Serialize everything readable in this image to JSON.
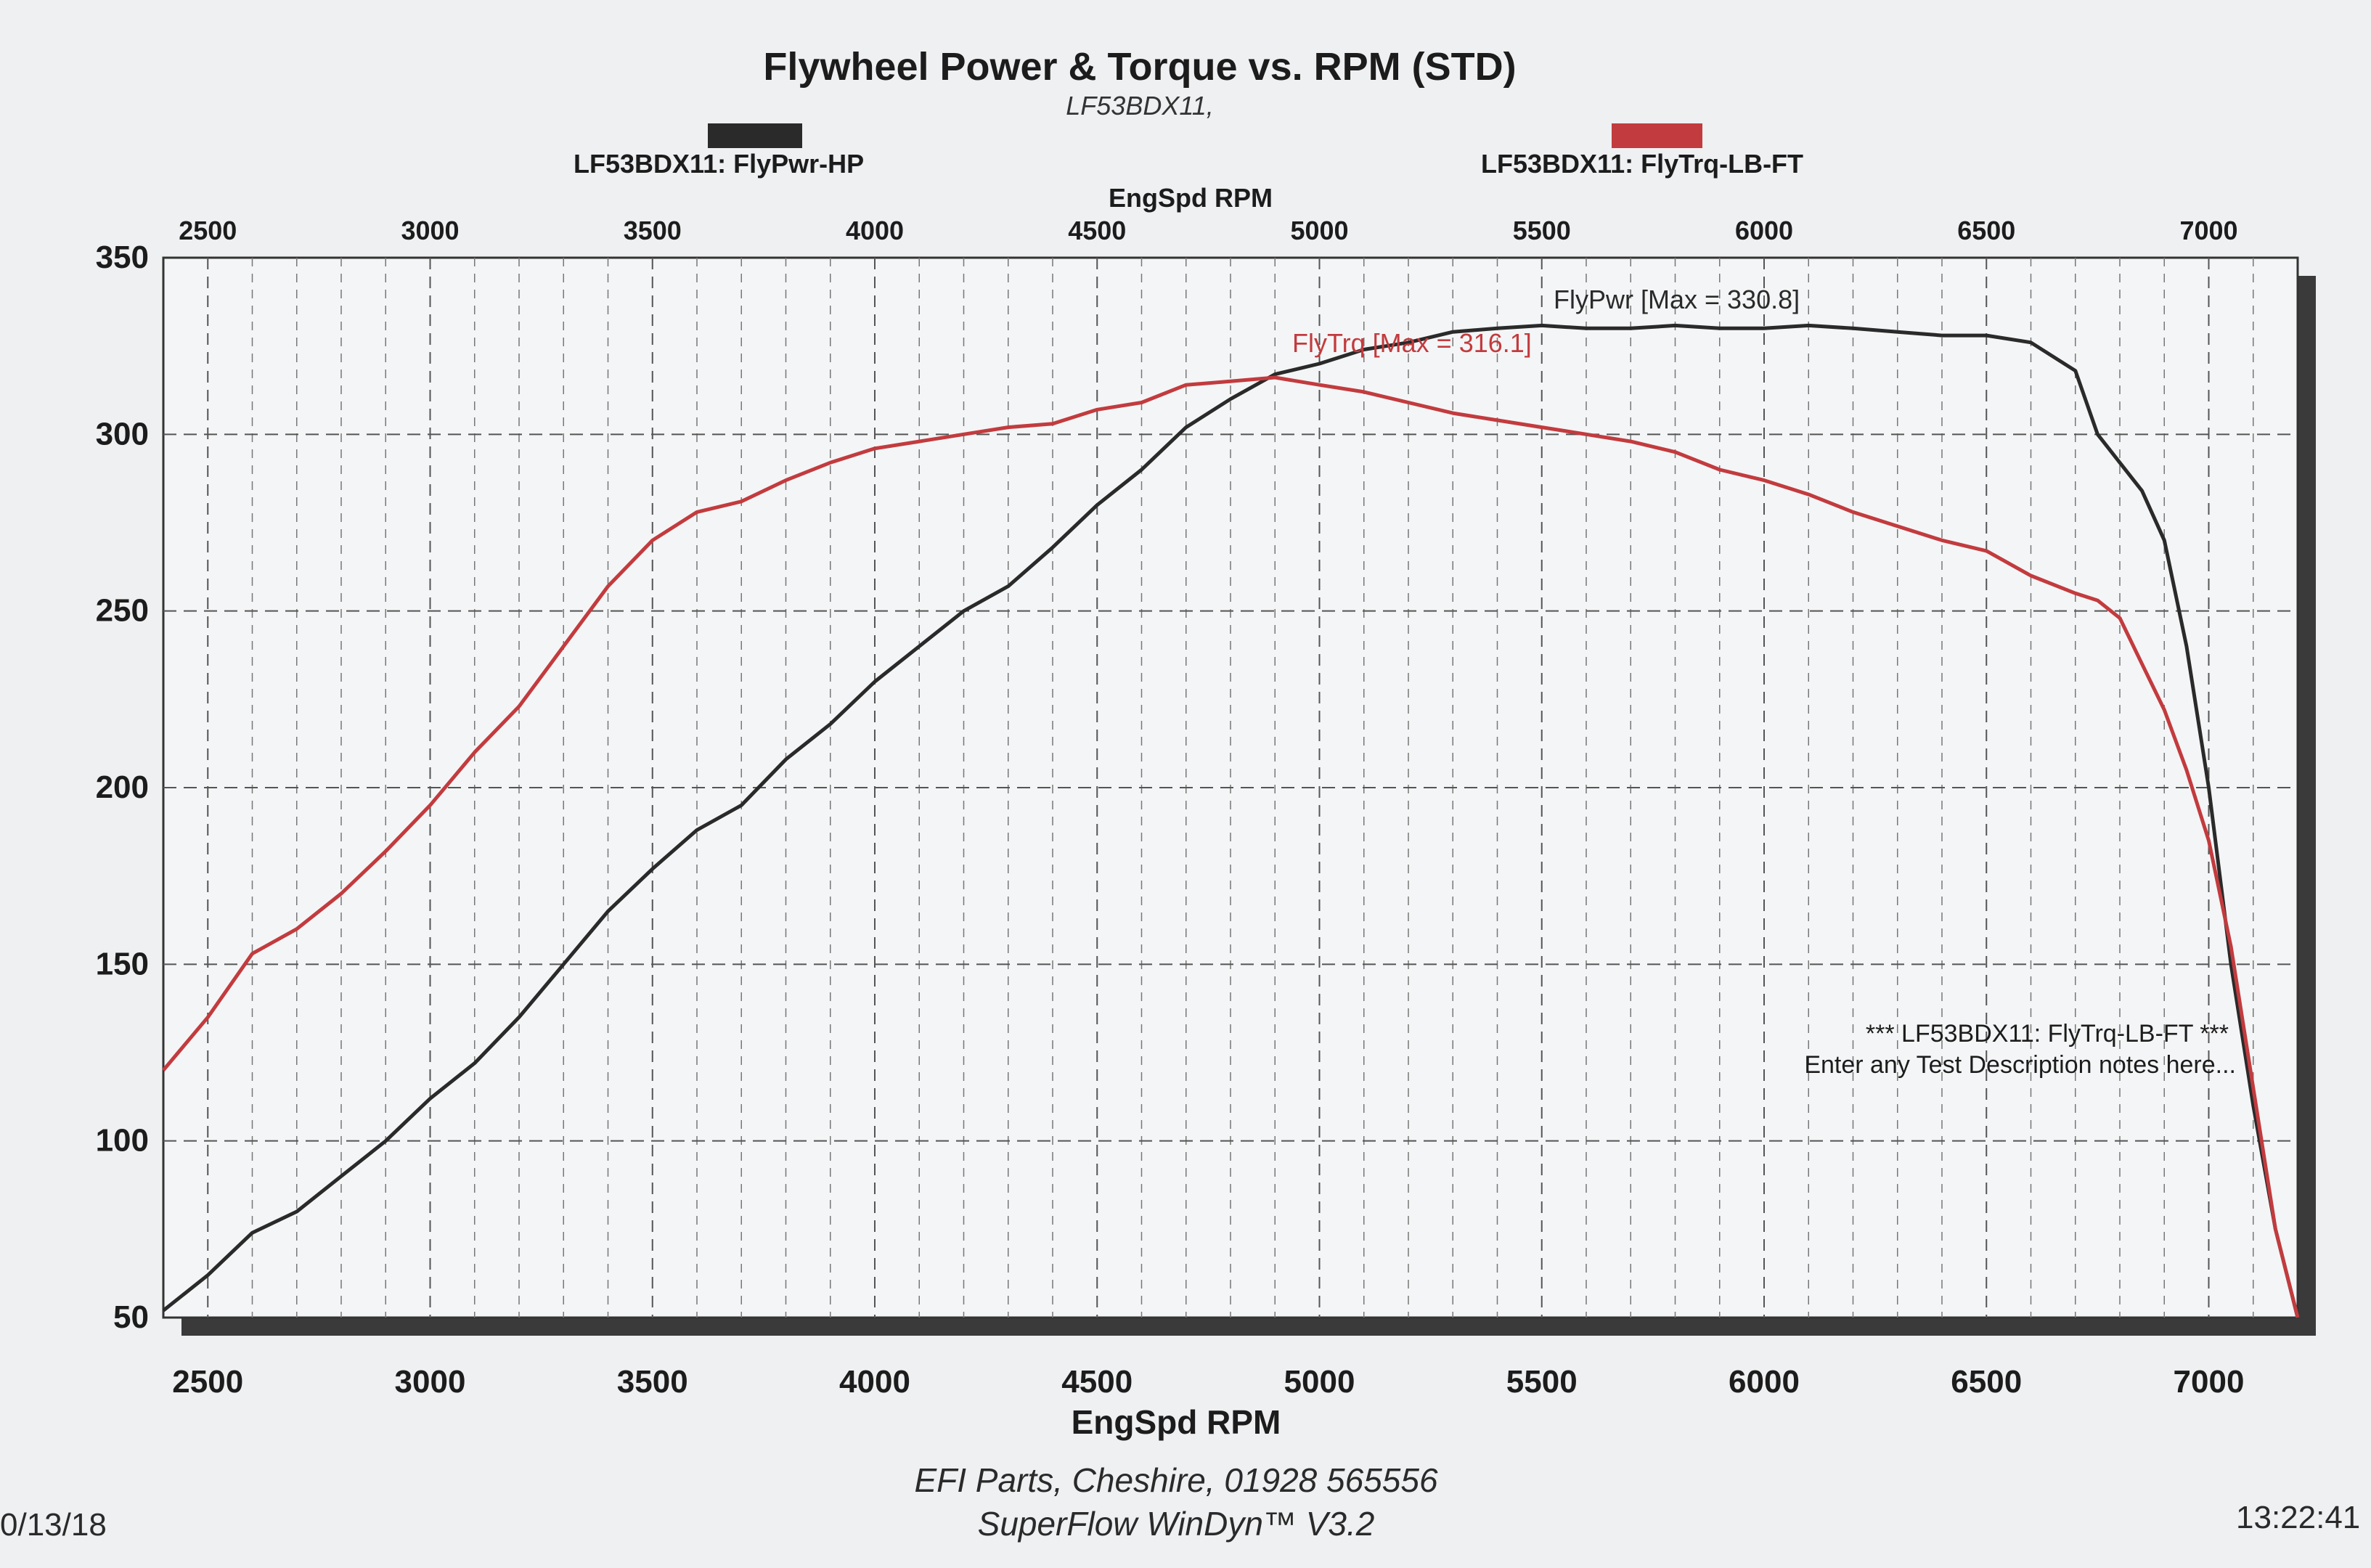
{
  "header": {
    "title": "Flywheel Power & Torque vs. RPM (STD)",
    "run_label": "LF53BDX11,",
    "legend_power": "LF53BDX11: FlyPwr-HP",
    "legend_torque": "LF53BDX11: FlyTrq-LB-FT",
    "top_axis_label": "EngSpd RPM"
  },
  "footer": {
    "company": "EFI Parts, Cheshire, 01928 565556",
    "software": "SuperFlow WinDyn™ V3.2",
    "date": "0/13/18",
    "time": "13:22:41"
  },
  "chart_data": {
    "type": "line",
    "title": "Flywheel Power & Torque vs. RPM (STD)",
    "xlabel": "EngSpd RPM",
    "xlim": [
      2400,
      7200
    ],
    "ylim": [
      50,
      350
    ],
    "x_ticks": [
      "2500",
      "3000",
      "3500",
      "4000",
      "4500",
      "5000",
      "5500",
      "6000",
      "6500",
      "7000"
    ],
    "y_ticks": [
      "50",
      "100",
      "150",
      "200",
      "250",
      "300",
      "350"
    ],
    "grid": true,
    "annotations": {
      "power_max": "FlyPwr [Max = 330.8]",
      "torque_max": "FlyTrq [Max = 316.1]",
      "notes_line1": "*** LF53BDX11: FlyTrq-LB-FT ***",
      "notes_line2": "Enter any Test Description notes here..."
    },
    "series": [
      {
        "name": "LF53BDX11: FlyPwr-HP",
        "color": "#2a2a2a",
        "x": [
          2400,
          2500,
          2600,
          2700,
          2800,
          2900,
          3000,
          3100,
          3200,
          3300,
          3400,
          3500,
          3600,
          3700,
          3800,
          3900,
          4000,
          4100,
          4200,
          4300,
          4400,
          4500,
          4600,
          4700,
          4800,
          4900,
          5000,
          5100,
          5200,
          5300,
          5400,
          5500,
          5600,
          5700,
          5800,
          5900,
          6000,
          6100,
          6200,
          6300,
          6400,
          6500,
          6600,
          6700,
          6750,
          6800,
          6850,
          6900,
          6950,
          7000,
          7050,
          7100,
          7150,
          7200
        ],
        "y": [
          52,
          62,
          74,
          80,
          90,
          100,
          112,
          122,
          135,
          150,
          165,
          177,
          188,
          195,
          208,
          218,
          230,
          240,
          250,
          257,
          268,
          280,
          290,
          302,
          310,
          317,
          320,
          324,
          326,
          329,
          330,
          330.8,
          330,
          330,
          330.8,
          330,
          330,
          330.8,
          330,
          329,
          328,
          328,
          326,
          318,
          300,
          292,
          284,
          270,
          240,
          200,
          150,
          110,
          75,
          50
        ]
      },
      {
        "name": "LF53BDX11: FlyTrq-LB-FT",
        "color": "#c23b3e",
        "x": [
          2400,
          2500,
          2600,
          2700,
          2800,
          2900,
          3000,
          3100,
          3200,
          3300,
          3400,
          3500,
          3600,
          3700,
          3800,
          3900,
          4000,
          4100,
          4200,
          4300,
          4400,
          4500,
          4600,
          4700,
          4800,
          4900,
          5000,
          5100,
          5200,
          5300,
          5400,
          5500,
          5600,
          5700,
          5800,
          5900,
          6000,
          6100,
          6200,
          6300,
          6400,
          6500,
          6600,
          6700,
          6750,
          6800,
          6850,
          6900,
          6950,
          7000,
          7050,
          7100,
          7150,
          7200
        ],
        "y": [
          120,
          135,
          153,
          160,
          170,
          182,
          195,
          210,
          223,
          240,
          257,
          270,
          278,
          281,
          287,
          292,
          296,
          298,
          300,
          302,
          303,
          307,
          309,
          314,
          315,
          316.1,
          314,
          312,
          309,
          306,
          304,
          302,
          300,
          298,
          295,
          290,
          287,
          283,
          278,
          274,
          270,
          267,
          260,
          255,
          253,
          248,
          235,
          222,
          205,
          185,
          155,
          115,
          75,
          50
        ]
      }
    ]
  }
}
